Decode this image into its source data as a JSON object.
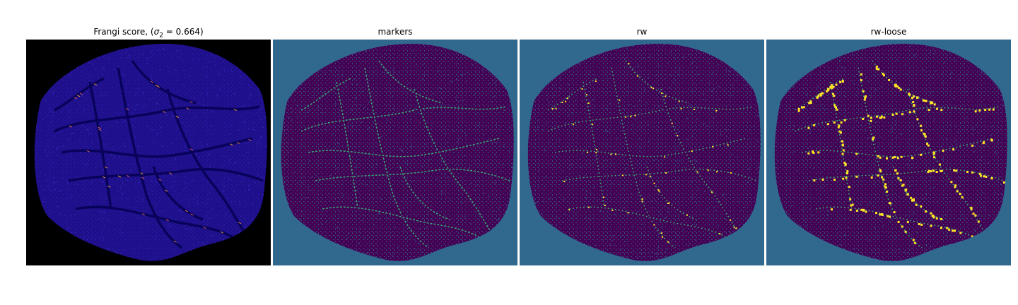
{
  "chart_data": [
    {
      "type": "heatmap",
      "title_prefix": "Frangi score, (",
      "title_symbol": "σ",
      "title_subscript": "2",
      "title_suffix": " = 0.664)",
      "colormap": "plasma",
      "background_color": "#000000",
      "texture_color": "#1e0f8a",
      "vessel_color": "#08035a",
      "highlight_colors": [
        "#f0873a",
        "#fca636",
        "#e16462"
      ]
    },
    {
      "type": "heatmap",
      "title": "markers",
      "colormap": "viridis",
      "background_color": "#31688e",
      "texture_color": "#440154",
      "vessel_color": "#35b779",
      "highlight_colors": []
    },
    {
      "type": "heatmap",
      "title": "rw",
      "colormap": "viridis",
      "background_color": "#31688e",
      "texture_color": "#440154",
      "vessel_color": "#35b779",
      "highlight_colors": [
        "#fde725"
      ]
    },
    {
      "type": "heatmap",
      "title": "rw-loose",
      "colormap": "viridis",
      "background_color": "#31688e",
      "texture_color": "#440154",
      "vessel_color": "#35b779",
      "highlight_colors": [
        "#fde725"
      ]
    }
  ]
}
